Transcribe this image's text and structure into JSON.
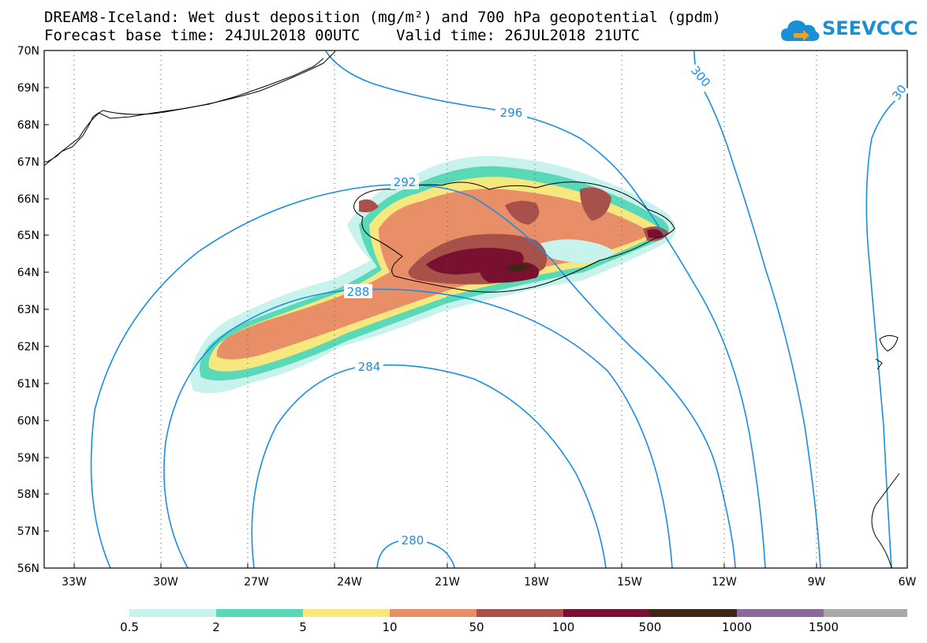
{
  "title": {
    "line1": "DREAM8-Iceland: Wet dust deposition (mg/m²) and 700 hPa geopotential (gpdm)",
    "line2": "Forecast base time: 24JUL2018 00UTC    Valid time: 26JUL2018 21UTC"
  },
  "logo": {
    "text": "SEEVCCC",
    "icon": "cloud-arrow-icon",
    "color": "#1890d8"
  },
  "map": {
    "lon_range": [
      -34,
      -6
    ],
    "lat_range": [
      56,
      70
    ],
    "lat_labels": [
      "70N",
      "69N",
      "68N",
      "67N",
      "66N",
      "65N",
      "64N",
      "63N",
      "62N",
      "61N",
      "60N",
      "59N",
      "58N",
      "57N",
      "56N"
    ],
    "lon_labels": [
      "33W",
      "30W",
      "27W",
      "24W",
      "21W",
      "18W",
      "15W",
      "12W",
      "9W",
      "6W"
    ],
    "grid": "dotted",
    "contour_color": "#1a8ee0",
    "contour_labels": [
      "296",
      "300",
      "30",
      "292",
      "288",
      "284",
      "280"
    ]
  },
  "colorbar": {
    "labels": [
      "0.5",
      "2",
      "5",
      "10",
      "50",
      "100",
      "500",
      "1000",
      "1500"
    ],
    "colors": [
      "#c8f2ec",
      "#5ad9b8",
      "#f6e87e",
      "#e88f68",
      "#a8504a",
      "#7a1030",
      "#3c2814",
      "#8a6a9a",
      "#a8a8a8"
    ]
  }
}
